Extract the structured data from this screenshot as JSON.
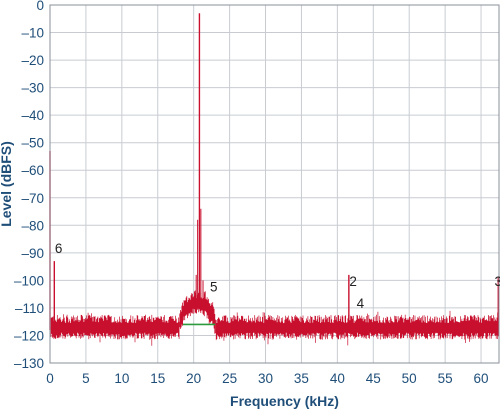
{
  "chart_data": {
    "type": "line",
    "title": "",
    "xlabel": "Frequency (kHz)",
    "ylabel": "Level (dBFS)",
    "xlim": [
      0,
      62.5
    ],
    "ylim": [
      -130,
      0
    ],
    "grid": true,
    "x_ticks": [
      "0",
      "5",
      "10",
      "15",
      "20",
      "25",
      "30",
      "35",
      "40",
      "45",
      "50",
      "55",
      "60"
    ],
    "y_ticks": [
      "0",
      "–10",
      "–20",
      "–30",
      "–40",
      "–50",
      "–60",
      "–70",
      "–80",
      "–90",
      "–100",
      "–110",
      "–120",
      "–130"
    ],
    "colors": {
      "spectrum": "#c8102e",
      "noise_bump_line": "#2e9a3e",
      "grid": "#c8ccd2",
      "text": "#1f4e79"
    },
    "noise_floor_db": -117,
    "series": [
      {
        "values": [
          {
            "x": 0.0,
            "y": -53
          },
          {
            "x": 0.6,
            "y": -93
          },
          {
            "x": 20.8,
            "y": -3
          },
          {
            "x": 41.6,
            "y": -98
          },
          {
            "x": 42.0,
            "y": -113
          },
          {
            "x": 62.4,
            "y": -99
          }
        ]
      }
    ],
    "bump": {
      "x_start": 18,
      "x_end": 23,
      "peak_db": -108
    },
    "reference_line": {
      "x_start": 18.5,
      "x_end": 23,
      "y": -116
    },
    "annotations": [
      {
        "text": "6",
        "x": 0.4,
        "y": -90
      },
      {
        "text": "5",
        "x": 22.0,
        "y": -104
      },
      {
        "text": "2",
        "x": 41.4,
        "y": -102
      },
      {
        "text": "4",
        "x": 42.4,
        "y": -110
      },
      {
        "text": "3",
        "x": 61.6,
        "y": -102
      }
    ]
  }
}
